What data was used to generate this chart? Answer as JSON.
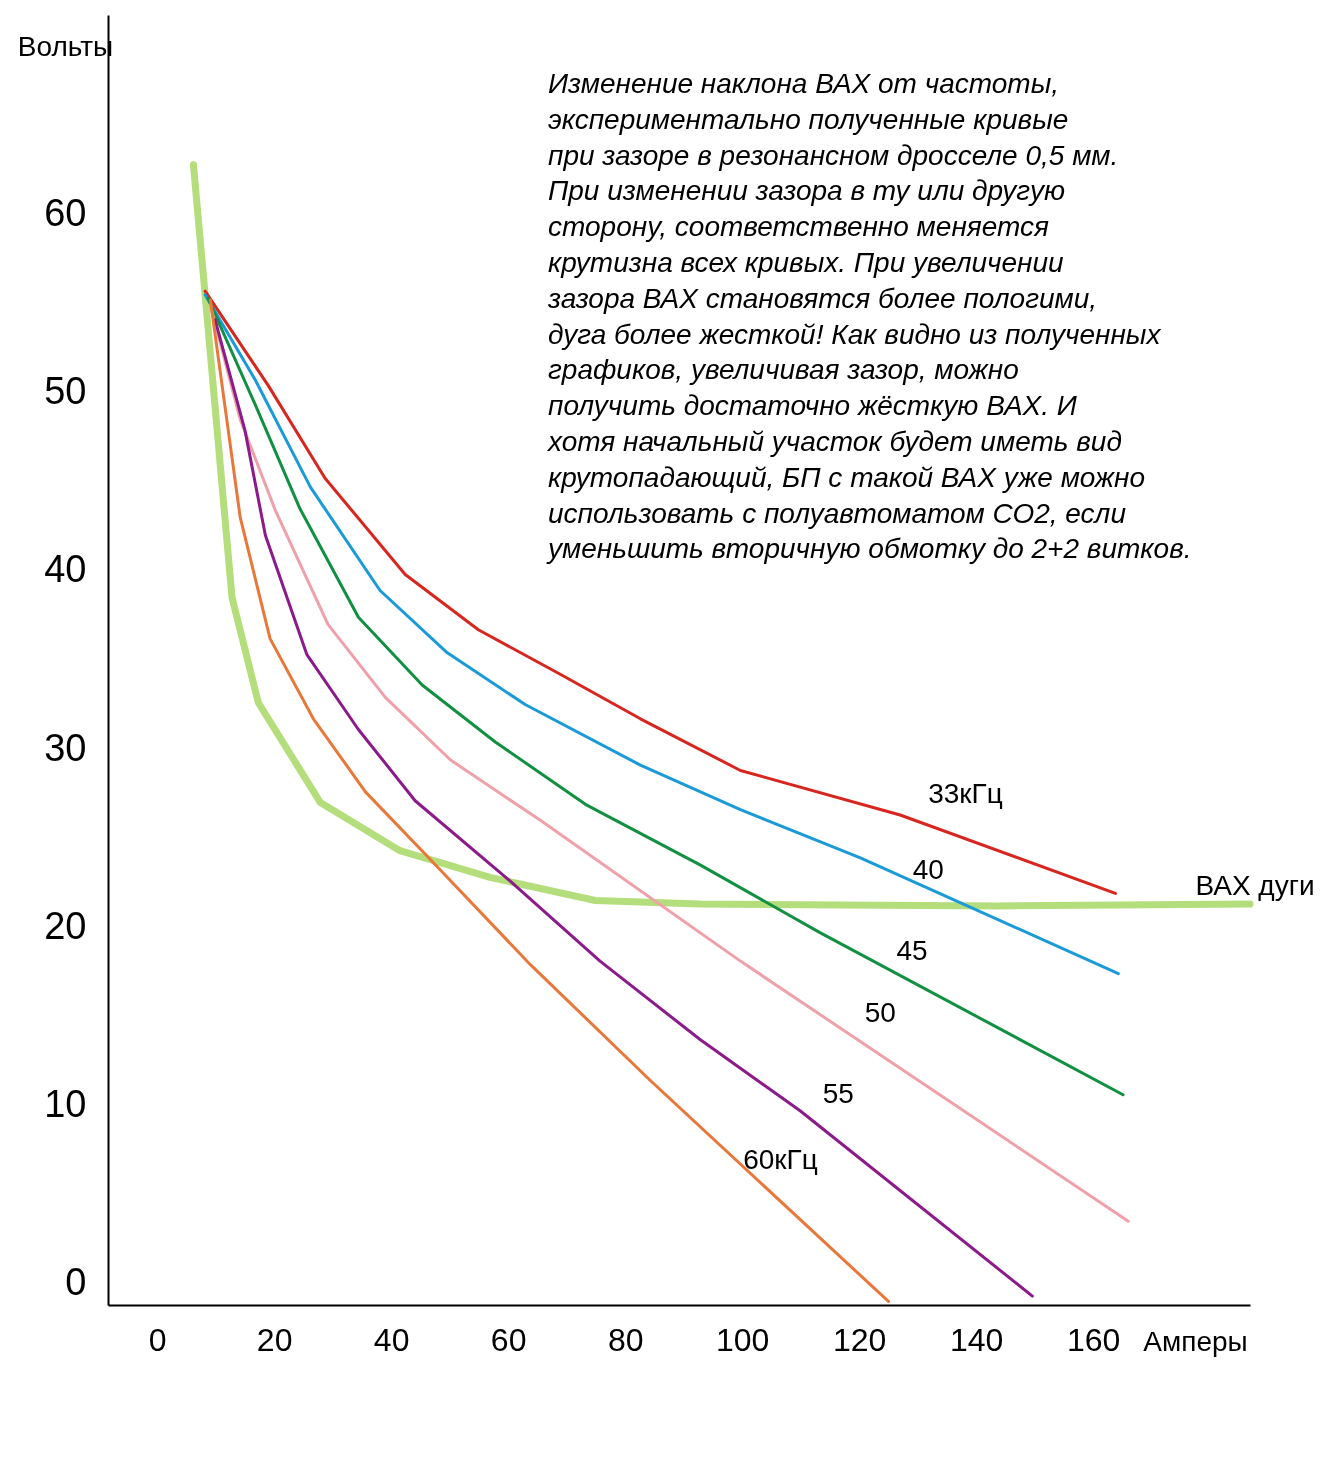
{
  "chart_data": {
    "type": "line",
    "xlabel": "Амперы",
    "ylabel": "Вольты",
    "xlim": [
      -8.4,
      186.8
    ],
    "ylim": [
      -1.2,
      71.2
    ],
    "xticks": [
      0,
      20,
      40,
      60,
      80,
      100,
      120,
      140,
      160
    ],
    "yticks": [
      0,
      10,
      20,
      30,
      40,
      50,
      60
    ],
    "marker": "none",
    "line_style": "solid",
    "annotations": [
      "Изменение наклона ВАХ от частоты,\nэкспериментально полученные кривые\nпри зазоре в резонансном дросселе 0,5 мм.\nПри изменении зазора в ту или другую\nсторону, соответственно меняется\nкрутизна всех кривых. При увеличении\nзазора ВАХ становятся более пологими,\nдуга более жесткой! Как видно из полученных\nграфиков, увеличивая зазор, можно\nполучить достаточно жёсткую ВАХ. И\nхотя начальный участок будет иметь вид\nкрутопадающий, БП с такой ВАХ уже можно\nиспользовать с полуавтоматом СО2, если\nуменьшить вторичную обмотку до 2+2 витков."
    ],
    "series": [
      {
        "name": "ВАХ дуги",
        "color": "#b4dd7c",
        "x": [
          6.2,
          8.2,
          12.8,
          17.3,
          27.9,
          41.5,
          56.9,
          74.9,
          92.8,
          144,
          186.8
        ],
        "values": [
          62.8,
          55.5,
          38.5,
          32.6,
          27.0,
          24.3,
          22.8,
          21.5,
          21.3,
          21.2,
          21.3
        ]
      },
      {
        "name": "33кГц",
        "color": "#d7261f",
        "x": [
          8.2,
          19,
          28.7,
          42.4,
          54.9,
          68.9,
          82.6,
          99.7,
          127,
          163.8
        ],
        "values": [
          55.7,
          50.4,
          45.2,
          39.8,
          36.7,
          34.2,
          31.7,
          28.8,
          26.3,
          21.9
        ]
      },
      {
        "name": "40",
        "color": "#1a9ad7",
        "x": [
          8.2,
          16.8,
          26.2,
          38.1,
          49.6,
          62.9,
          82.6,
          99.7,
          120.2,
          164.3
        ],
        "values": [
          55.5,
          50.7,
          44.7,
          38.9,
          35.4,
          32.5,
          29.1,
          26.6,
          23.9,
          17.4
        ]
      },
      {
        "name": "45",
        "color": "#109040",
        "x": [
          8.7,
          16.8,
          24.4,
          34.4,
          45.3,
          57.8,
          73.2,
          92.8,
          113.3,
          165.1
        ],
        "values": [
          55.3,
          49.3,
          43.5,
          37.4,
          33.6,
          30.4,
          26.9,
          23.5,
          19.7,
          10.6
        ]
      },
      {
        "name": "50",
        "color": "#f0a0a8",
        "x": [
          9.1,
          14.2,
          20.2,
          29.2,
          39,
          50.1,
          65.5,
          99.7,
          166
        ],
        "values": [
          54.9,
          48.5,
          43.4,
          37.0,
          32.9,
          29.4,
          26.0,
          18.1,
          3.5
        ]
      },
      {
        "name": "55",
        "color": "#8b1a8a",
        "x": [
          9.9,
          15,
          18.5,
          25.6,
          34.4,
          44.1,
          60.3,
          75.7,
          92.8,
          109.9,
          149.6
        ],
        "values": [
          54.1,
          47.9,
          42,
          35.3,
          31.1,
          27.1,
          22.6,
          18.1,
          13.7,
          9.7,
          -0.7
        ]
      },
      {
        "name": "60кГц",
        "color": "#e8783a",
        "x": [
          9.1,
          14.2,
          19.3,
          26.7,
          35.6,
          46.7,
          63.8,
          84.3,
          125
        ],
        "values": [
          55.2,
          43.0,
          36.2,
          31.7,
          27.6,
          23.8,
          17.9,
          11.4,
          -1
        ]
      }
    ]
  }
}
